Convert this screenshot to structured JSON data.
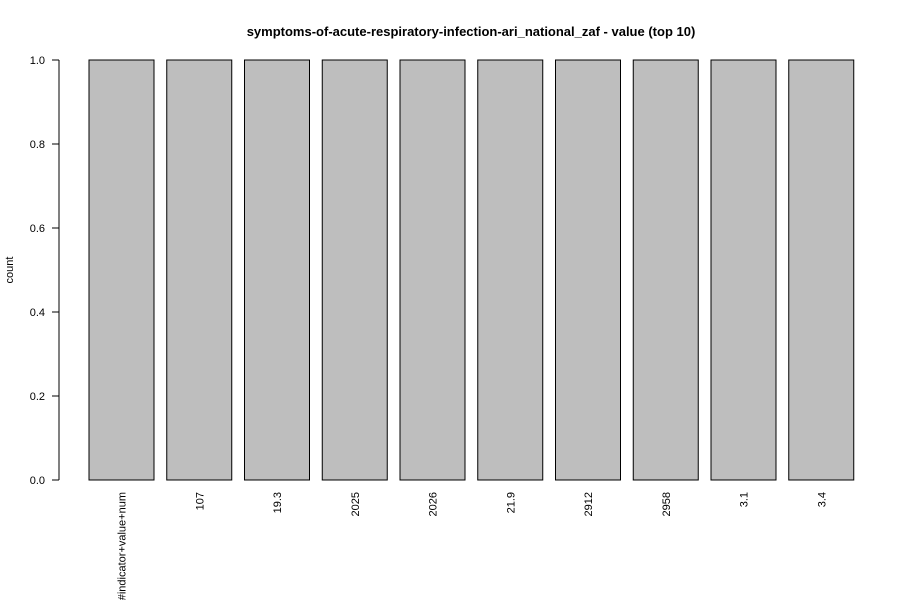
{
  "chart_data": {
    "type": "bar",
    "title": "symptoms-of-acute-respiratory-infection-ari_national_zaf - value (top 10)",
    "xlabel": "",
    "ylabel": "count",
    "categories": [
      "#indicator+value+num",
      "107",
      "19.3",
      "2025",
      "2026",
      "21.9",
      "2912",
      "2958",
      "3.1",
      "3.4"
    ],
    "values": [
      1,
      1,
      1,
      1,
      1,
      1,
      1,
      1,
      1,
      1
    ],
    "ylim": [
      0,
      1
    ],
    "yticks": [
      "0.0",
      "0.2",
      "0.4",
      "0.6",
      "0.8",
      "1.0"
    ],
    "grid": false,
    "legend": "none",
    "bar_color": "#bebebe",
    "border_color": "#000000"
  }
}
